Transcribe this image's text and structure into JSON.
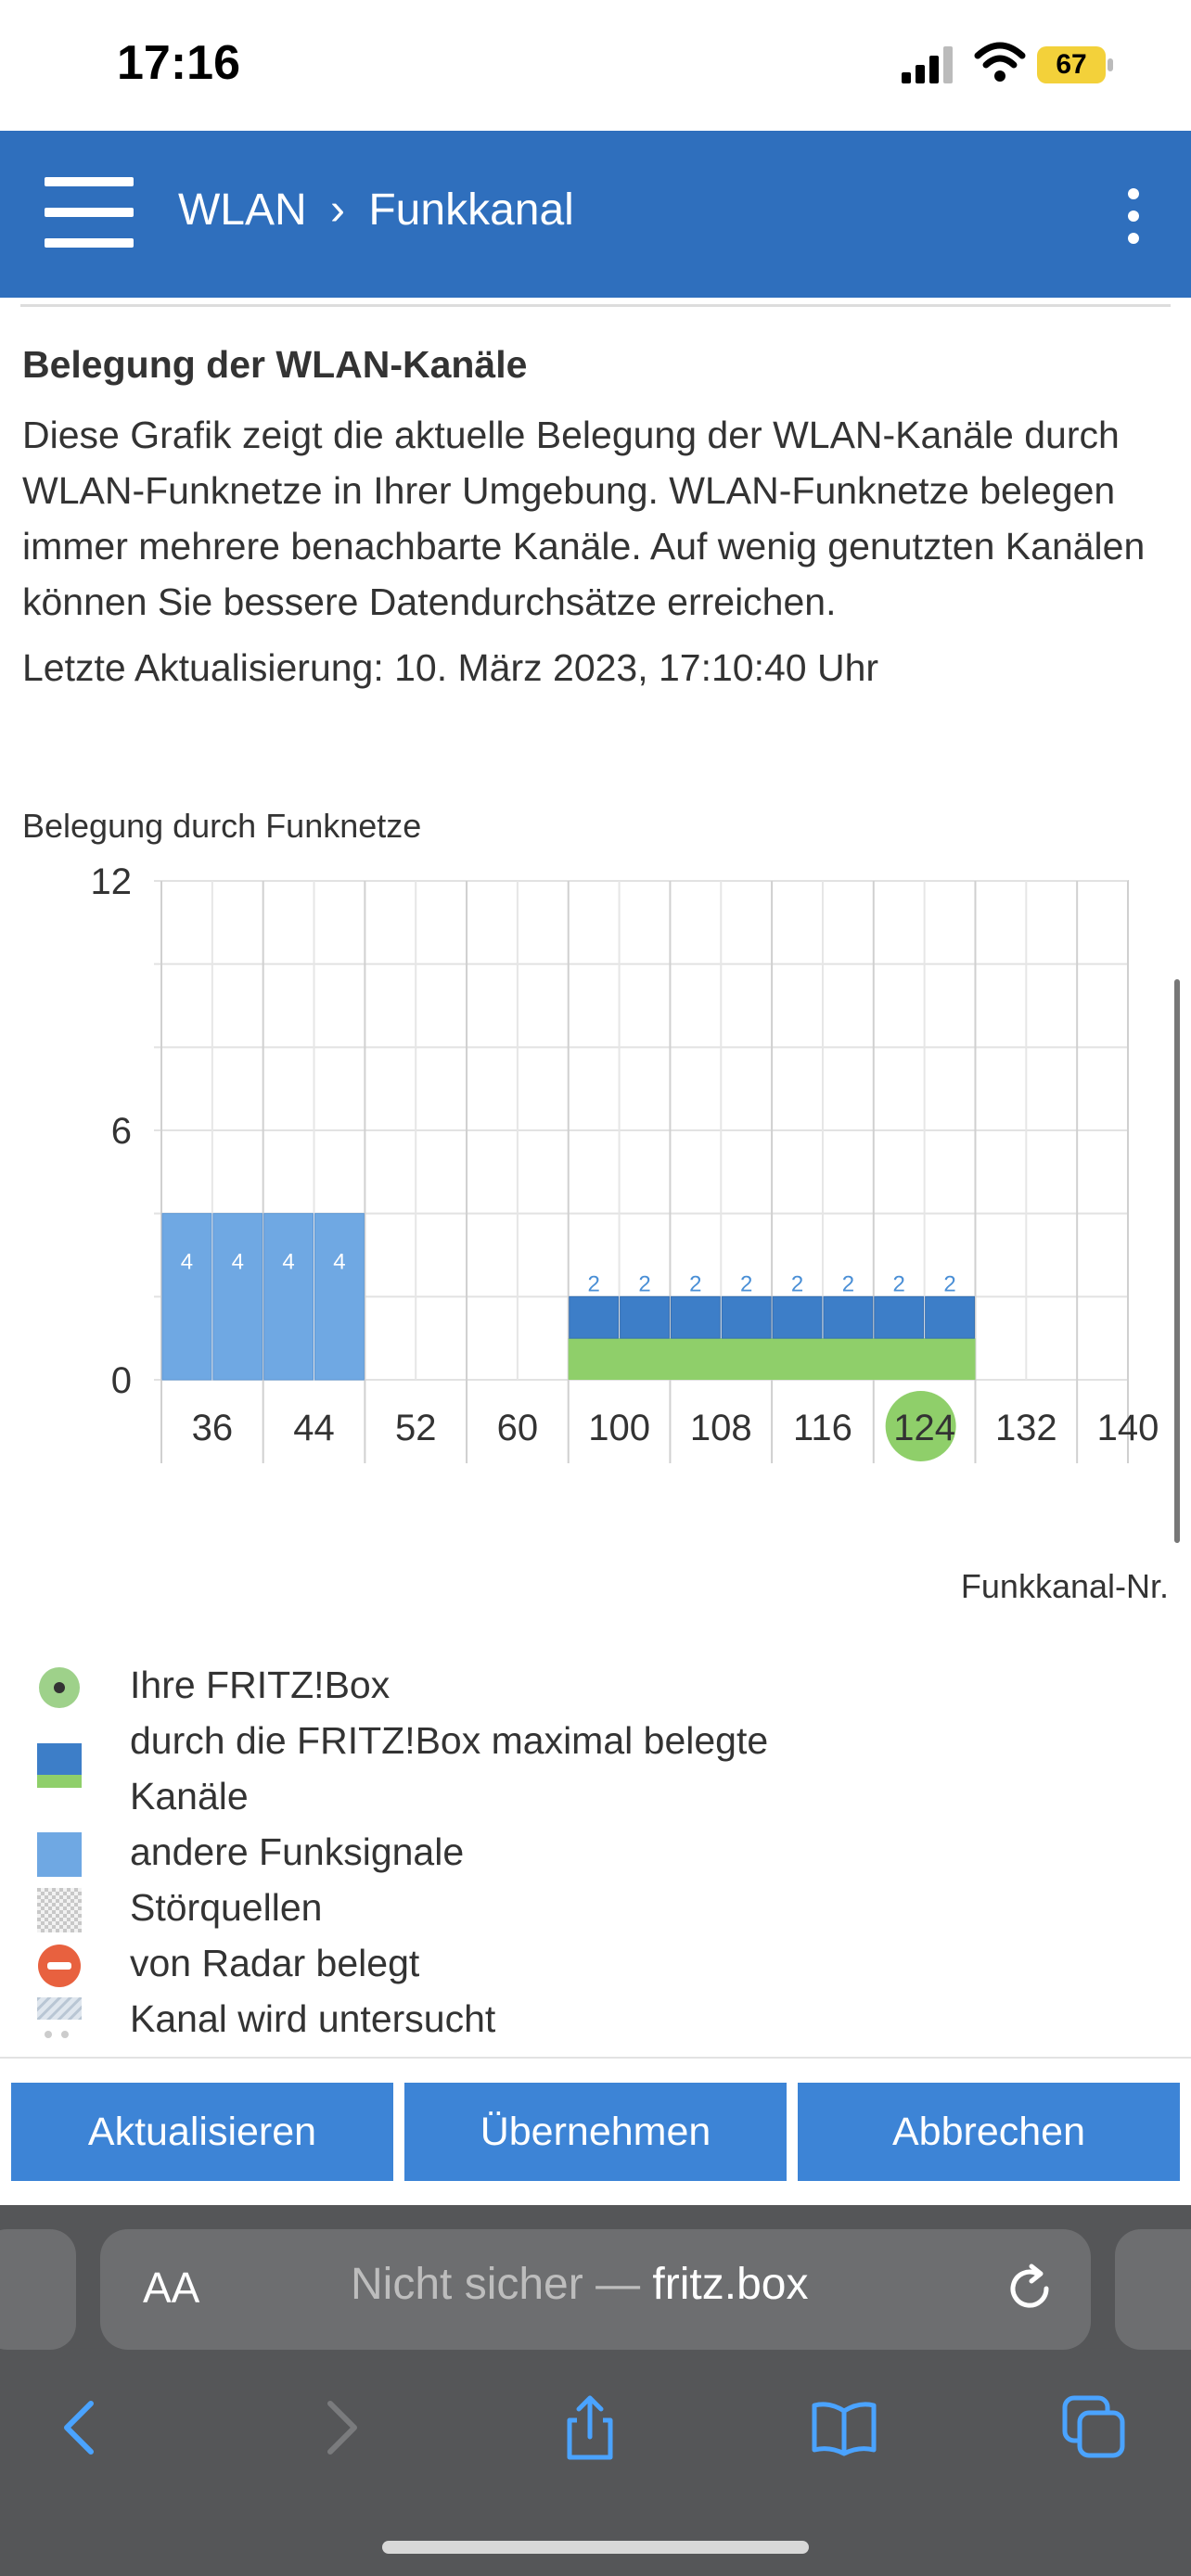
{
  "status": {
    "time": "17:16",
    "battery": "67"
  },
  "appbar": {
    "section": "WLAN",
    "separator": "›",
    "page": "Funkkanal"
  },
  "main": {
    "heading": "Belegung der WLAN-Kanäle",
    "description": "Diese Grafik zeigt die aktuelle Belegung der WLAN-Kanäle durch WLAN-Funknetze in Ihrer Umgebung. WLAN-Funknetze belegen immer mehrere benachbarte Kanäle. Auf wenig genutzten Kanälen können Sie bessere Datendurchsätze erreichen.",
    "updated": "Letzte Aktualisierung: 10. März 2023, 17:10:40 Uhr"
  },
  "chart_data": {
    "type": "bar",
    "title": "Belegung durch Funknetze",
    "xlabel": "Funkkanal-Nr.",
    "ylabel": "",
    "ylim": [
      0,
      12
    ],
    "y_ticks": [
      "0",
      "6",
      "12"
    ],
    "channels": [
      "36",
      "40",
      "44",
      "48",
      "52",
      "56",
      "60",
      "64",
      "100",
      "104",
      "108",
      "112",
      "116",
      "120",
      "124",
      "128",
      "132",
      "136",
      "140"
    ],
    "x_tick_labels": [
      "36",
      "44",
      "52",
      "60",
      "100",
      "108",
      "116",
      "124",
      "132",
      "140"
    ],
    "own_channel": "124",
    "series": [
      {
        "name": "andere Funksignale",
        "color": "#6fa8e3",
        "values": [
          4,
          4,
          4,
          4,
          0,
          0,
          0,
          0,
          0,
          0,
          0,
          0,
          0,
          0,
          0,
          0,
          0,
          0,
          0
        ]
      },
      {
        "name": "durch die FRITZ!Box maximal belegte Kanäle",
        "color": "#3d7ec8",
        "values": [
          0,
          0,
          0,
          0,
          0,
          0,
          0,
          0,
          2,
          2,
          2,
          2,
          2,
          2,
          2,
          2,
          0,
          0,
          0
        ]
      }
    ],
    "grid": true
  },
  "legend": [
    {
      "label": "Ihre FRITZ!Box",
      "icon": "green-dot"
    },
    {
      "label": "durch die FRITZ!Box maximal belegte",
      "label2": "Kanäle",
      "icon": "blue-green-block"
    },
    {
      "label": "andere Funksignale",
      "icon": "light-blue-block"
    },
    {
      "label": "Störquellen",
      "icon": "checker-pattern"
    },
    {
      "label": "von Radar belegt",
      "icon": "radar-minus"
    },
    {
      "label": "Kanal wird untersucht",
      "icon": "hatched-scan"
    }
  ],
  "buttons": {
    "refresh": "Aktualisieren",
    "apply": "Übernehmen",
    "cancel": "Abbrechen"
  },
  "browser": {
    "aa": "AA",
    "url_prefix": "Nicht sicher — ",
    "url_host": "fritz.box"
  }
}
